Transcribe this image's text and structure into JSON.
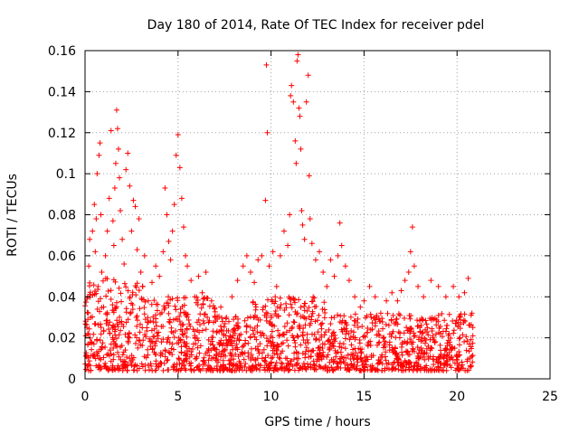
{
  "chart_data": {
    "type": "scatter",
    "title": "Day 180 of 2014, Rate Of TEC Index for receiver pdel",
    "xlabel": "GPS time / hours",
    "ylabel": "ROTI / TECUs",
    "xlim": [
      0,
      25
    ],
    "ylim": [
      0,
      0.16
    ],
    "xticks": [
      0,
      5,
      10,
      15,
      20,
      25
    ],
    "xtick_labels": [
      "0",
      "5",
      "10",
      "15",
      "20",
      "25"
    ],
    "yticks": [
      0,
      0.02,
      0.04,
      0.06,
      0.08,
      0.1,
      0.12,
      0.14,
      0.16
    ],
    "ytick_labels": [
      "0",
      "0.02",
      "0.04",
      "0.06",
      "0.08",
      "0.1",
      "0.12",
      "0.14",
      "0.16"
    ],
    "grid": true,
    "marker": "+",
    "color": "#ff0000",
    "series": [
      {
        "name": "ROTI",
        "points": [
          [
            0.05,
            0.011
          ],
          [
            0.1,
            0.025
          ],
          [
            0.15,
            0.04
          ],
          [
            0.2,
            0.055
          ],
          [
            0.25,
            0.068
          ],
          [
            0.3,
            0.03
          ],
          [
            0.35,
            0.018
          ],
          [
            0.4,
            0.072
          ],
          [
            0.5,
            0.085
          ],
          [
            0.55,
            0.062
          ],
          [
            0.6,
            0.078
          ],
          [
            0.65,
            0.1
          ],
          [
            0.7,
            0.045
          ],
          [
            0.75,
            0.109
          ],
          [
            0.8,
            0.115
          ],
          [
            0.85,
            0.08
          ],
          [
            0.9,
            0.052
          ],
          [
            1.0,
            0.035
          ],
          [
            1.1,
            0.06
          ],
          [
            1.2,
            0.072
          ],
          [
            1.3,
            0.088
          ],
          [
            1.4,
            0.121
          ],
          [
            1.5,
            0.077
          ],
          [
            1.55,
            0.065
          ],
          [
            1.6,
            0.093
          ],
          [
            1.65,
            0.105
          ],
          [
            1.7,
            0.131
          ],
          [
            1.75,
            0.122
          ],
          [
            1.8,
            0.112
          ],
          [
            1.85,
            0.098
          ],
          [
            1.9,
            0.082
          ],
          [
            2.0,
            0.068
          ],
          [
            2.1,
            0.056
          ],
          [
            2.2,
            0.102
          ],
          [
            2.3,
            0.11
          ],
          [
            2.4,
            0.094
          ],
          [
            2.5,
            0.072
          ],
          [
            2.6,
            0.087
          ],
          [
            2.7,
            0.084
          ],
          [
            2.8,
            0.063
          ],
          [
            2.9,
            0.078
          ],
          [
            3.0,
            0.052
          ],
          [
            3.1,
            0.045
          ],
          [
            3.2,
            0.06
          ],
          [
            3.4,
            0.038
          ],
          [
            3.6,
            0.047
          ],
          [
            3.8,
            0.055
          ],
          [
            4.0,
            0.05
          ],
          [
            4.2,
            0.062
          ],
          [
            4.3,
            0.093
          ],
          [
            4.4,
            0.08
          ],
          [
            4.5,
            0.067
          ],
          [
            4.6,
            0.058
          ],
          [
            4.7,
            0.072
          ],
          [
            4.8,
            0.085
          ],
          [
            4.9,
            0.109
          ],
          [
            5.0,
            0.119
          ],
          [
            5.1,
            0.103
          ],
          [
            5.2,
            0.088
          ],
          [
            5.3,
            0.074
          ],
          [
            5.4,
            0.06
          ],
          [
            5.5,
            0.055
          ],
          [
            5.7,
            0.048
          ],
          [
            5.9,
            0.04
          ],
          [
            6.1,
            0.05
          ],
          [
            6.3,
            0.042
          ],
          [
            6.5,
            0.052
          ],
          [
            6.8,
            0.038
          ],
          [
            7.0,
            0.03
          ],
          [
            7.3,
            0.035
          ],
          [
            7.6,
            0.03
          ],
          [
            7.9,
            0.04
          ],
          [
            8.2,
            0.048
          ],
          [
            8.5,
            0.055
          ],
          [
            8.7,
            0.06
          ],
          [
            8.9,
            0.052
          ],
          [
            9.1,
            0.047
          ],
          [
            9.3,
            0.058
          ],
          [
            9.5,
            0.06
          ],
          [
            9.7,
            0.087
          ],
          [
            9.75,
            0.153
          ],
          [
            9.8,
            0.12
          ],
          [
            9.9,
            0.055
          ],
          [
            10.1,
            0.062
          ],
          [
            10.3,
            0.045
          ],
          [
            10.5,
            0.06
          ],
          [
            10.7,
            0.072
          ],
          [
            10.9,
            0.065
          ],
          [
            11.0,
            0.08
          ],
          [
            11.05,
            0.138
          ],
          [
            11.1,
            0.143
          ],
          [
            11.2,
            0.135
          ],
          [
            11.3,
            0.116
          ],
          [
            11.35,
            0.105
          ],
          [
            11.4,
            0.155
          ],
          [
            11.45,
            0.158
          ],
          [
            11.5,
            0.132
          ],
          [
            11.55,
            0.128
          ],
          [
            11.6,
            0.112
          ],
          [
            11.65,
            0.082
          ],
          [
            11.7,
            0.075
          ],
          [
            11.8,
            0.068
          ],
          [
            11.9,
            0.135
          ],
          [
            12.0,
            0.148
          ],
          [
            12.05,
            0.099
          ],
          [
            12.1,
            0.078
          ],
          [
            12.2,
            0.066
          ],
          [
            12.4,
            0.058
          ],
          [
            12.6,
            0.062
          ],
          [
            12.8,
            0.052
          ],
          [
            13.0,
            0.045
          ],
          [
            13.2,
            0.058
          ],
          [
            13.4,
            0.05
          ],
          [
            13.6,
            0.06
          ],
          [
            13.7,
            0.076
          ],
          [
            13.8,
            0.065
          ],
          [
            14.0,
            0.055
          ],
          [
            14.2,
            0.048
          ],
          [
            14.5,
            0.04
          ],
          [
            14.8,
            0.035
          ],
          [
            15.0,
            0.038
          ],
          [
            15.3,
            0.045
          ],
          [
            15.6,
            0.04
          ],
          [
            15.9,
            0.032
          ],
          [
            16.2,
            0.038
          ],
          [
            16.5,
            0.042
          ],
          [
            16.8,
            0.038
          ],
          [
            17.0,
            0.043
          ],
          [
            17.2,
            0.048
          ],
          [
            17.4,
            0.052
          ],
          [
            17.5,
            0.062
          ],
          [
            17.6,
            0.074
          ],
          [
            17.7,
            0.055
          ],
          [
            17.9,
            0.045
          ],
          [
            18.2,
            0.04
          ],
          [
            18.6,
            0.048
          ],
          [
            19.0,
            0.045
          ],
          [
            19.4,
            0.04
          ],
          [
            19.8,
            0.045
          ],
          [
            20.1,
            0.04
          ],
          [
            20.4,
            0.042
          ],
          [
            20.6,
            0.049
          ],
          [
            20.8,
            0.032
          ]
        ]
      }
    ]
  }
}
